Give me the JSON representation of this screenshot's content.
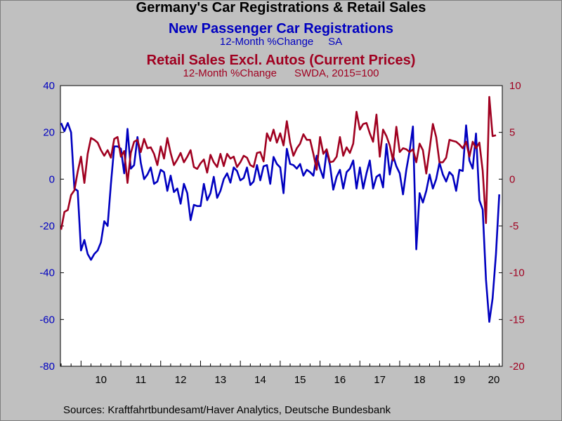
{
  "header": {
    "title": "Germany's Car Registrations & Retail Sales",
    "series1_title": "New Passenger Car Registrations",
    "series1_note": "12-Month %Change     SA",
    "series2_title": "Retail Sales Excl. Autos (Current Prices)",
    "series2_note": "12-Month %Change      SWDA, 2015=100"
  },
  "footer": {
    "source": "Sources:  Kraftfahrtbundesamt/Haver Analytics, Deutsche Bundesbank"
  },
  "colors": {
    "background": "#c0c0c0",
    "plot_background": "#ffffff",
    "series1": "#0000c0",
    "series2": "#a00020"
  },
  "chart_data": {
    "type": "line",
    "x_start": "2009-07",
    "x_frequency": "monthly",
    "x_tick_labels": [
      "10",
      "11",
      "12",
      "13",
      "14",
      "15",
      "16",
      "17",
      "18",
      "19",
      "20"
    ],
    "y_left_ticks": [
      40,
      20,
      0,
      -20,
      -40,
      -60,
      -80
    ],
    "y_left_range": [
      -80,
      40
    ],
    "y_right_ticks": [
      10,
      5,
      0,
      -5,
      -10,
      -15,
      -20
    ],
    "y_right_range": [
      -20,
      10
    ],
    "grid": false,
    "legend": "none",
    "series": [
      {
        "name": "New Passenger Car Registrations",
        "axis": "left",
        "values": [
          24,
          20.5,
          24,
          20,
          -4,
          -5,
          -30.5,
          -26,
          -32,
          -34.5,
          -32,
          -30.5,
          -27,
          -18,
          -20,
          -2,
          14,
          14,
          13,
          2.5,
          21.5,
          4.5,
          6,
          18,
          7,
          0,
          2,
          5,
          -2,
          -1,
          4,
          3,
          -5,
          1.5,
          -5.5,
          -4,
          -10.5,
          -2,
          -6,
          -17.5,
          -11,
          -11.5,
          -11.5,
          -2,
          -9,
          -6,
          1,
          -8,
          -5,
          0,
          2.5,
          -1.5,
          5,
          3.5,
          -0.5,
          0.5,
          5,
          -2.5,
          -1,
          6,
          -0.5,
          5.5,
          6,
          -2,
          9.5,
          6.5,
          5,
          -6,
          13,
          6.5,
          6,
          4.5,
          6.5,
          1.5,
          4,
          3,
          1.5,
          10,
          4.5,
          0.5,
          12,
          6,
          -4.5,
          1,
          4,
          -4,
          3,
          4.5,
          8,
          -4,
          5,
          -4,
          2.5,
          8,
          -4,
          1,
          2,
          -3.5,
          15,
          2,
          10,
          5.5,
          2.5,
          -6.5,
          4,
          12,
          22.5,
          -30,
          -6,
          -10,
          -5,
          2,
          -4,
          0,
          7,
          2,
          -1,
          3,
          1.5,
          -5,
          4,
          3.5,
          23,
          8,
          4.5,
          19.5,
          -9,
          -13,
          -43,
          -61,
          -51,
          -32,
          -6.5
        ]
      },
      {
        "name": "Retail Sales Excl. Autos (Current Prices)",
        "axis": "right",
        "values": [
          -5.4,
          -3.5,
          -3.3,
          -1.7,
          -1.2,
          0.8,
          2.4,
          -0.4,
          2.7,
          4.4,
          4.2,
          3.9,
          3.1,
          2.5,
          3.1,
          2.3,
          4.3,
          4.5,
          2.4,
          3,
          -0.4,
          2.8,
          4,
          4.2,
          2.9,
          4.3,
          3.3,
          3.4,
          2.7,
          1.5,
          3.5,
          2.2,
          4.4,
          2.8,
          1.5,
          2.1,
          2.8,
          1.8,
          2.4,
          3.1,
          1.3,
          1.1,
          1.7,
          2.1,
          0.7,
          2.6,
          1.8,
          1.3,
          2.7,
          1.4,
          2.7,
          2.2,
          2.4,
          1.3,
          1.8,
          2.5,
          2.3,
          1.5,
          1.3,
          2.8,
          2.9,
          1.9,
          4.9,
          4.1,
          5.3,
          3.9,
          4.9,
          3.6,
          6.2,
          3.9,
          2.5,
          3.3,
          3.8,
          4.8,
          4.2,
          4.2,
          2.7,
          1,
          4.5,
          2.7,
          3.2,
          1.8,
          1.9,
          2.4,
          4.5,
          2.5,
          3.4,
          2.8,
          3.8,
          7.2,
          5.3,
          5.9,
          6,
          4.9,
          4,
          6.9,
          2.4,
          5.3,
          4.6,
          3.6,
          2,
          5.6,
          2.9,
          3.3,
          3.2,
          2.9,
          3.2,
          1.8,
          3.8,
          3.1,
          0.6,
          3.2,
          5.9,
          4.5,
          1.8,
          1.8,
          2.3,
          4.2,
          4.1,
          4,
          3.7,
          3.3,
          4,
          2.4,
          4,
          3.3,
          3.9,
          0.9,
          -4.7,
          8.8,
          4.6,
          4.7
        ]
      }
    ]
  }
}
